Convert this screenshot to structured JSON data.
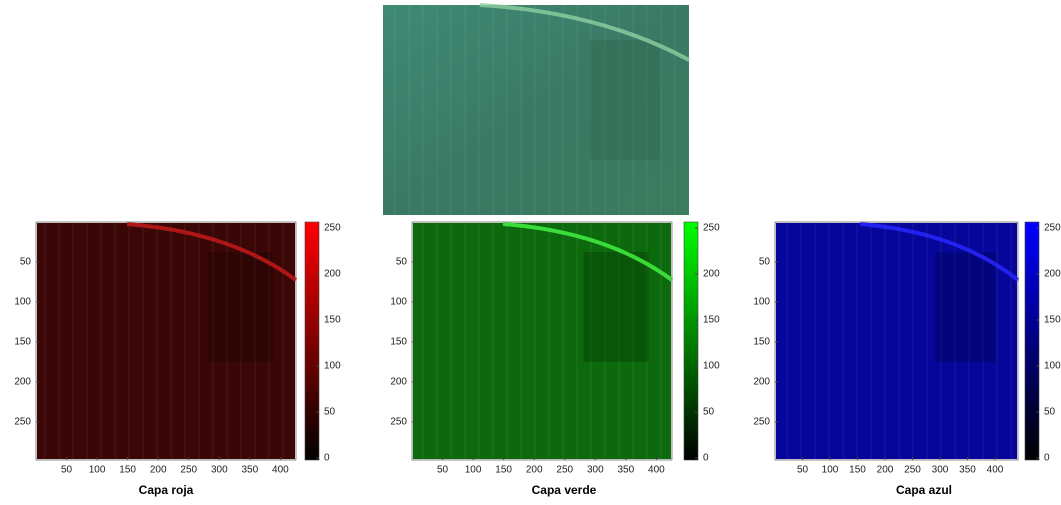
{
  "panels": [
    {
      "title": "Capa roja",
      "xticks": [
        50,
        100,
        150,
        200,
        250,
        300,
        350,
        400
      ],
      "yticks": [
        50,
        100,
        150,
        200,
        250
      ],
      "colorbar_ticks": [
        0,
        50,
        100,
        150,
        200,
        250
      ]
    },
    {
      "title": "Capa verde",
      "xticks": [
        50,
        100,
        150,
        200,
        250,
        300,
        350,
        400
      ],
      "yticks": [
        50,
        100,
        150,
        200,
        250
      ],
      "colorbar_ticks": [
        0,
        50,
        100,
        150,
        200,
        250
      ]
    },
    {
      "title": "Capa azul",
      "xticks": [
        50,
        100,
        150,
        200,
        250,
        300,
        350,
        400
      ],
      "yticks": [
        50,
        100,
        150,
        200,
        250
      ],
      "colorbar_ticks": [
        0,
        50,
        100,
        150,
        200,
        250
      ]
    }
  ]
}
